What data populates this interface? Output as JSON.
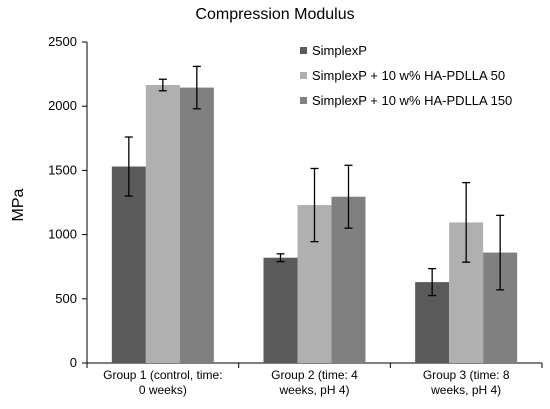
{
  "chart_data": {
    "type": "bar",
    "title": "Compression Modulus",
    "xlabel": "",
    "ylabel": "MPa",
    "ylim": [
      0,
      2500
    ],
    "yticks": [
      0,
      500,
      1000,
      1500,
      2000,
      2500
    ],
    "categories": [
      [
        "Group 1 (control, time:",
        "0 weeks)"
      ],
      [
        "Group 2 (time: 4",
        "weeks, pH 4)"
      ],
      [
        "Group 3 (time: 8",
        "weeks, pH 4)"
      ]
    ],
    "grid": false,
    "legend_position": "top-right",
    "series": [
      {
        "name": "SimplexP",
        "color": "#5a5a5a",
        "values": [
          1530,
          820,
          630
        ],
        "errors": [
          230,
          30,
          105
        ]
      },
      {
        "name": "SimplexP + 10 w% HA-PDLLA 50",
        "color": "#b0b0b0",
        "values": [
          2165,
          1230,
          1095
        ],
        "errors": [
          45,
          285,
          310
        ]
      },
      {
        "name": "SimplexP + 10 w% HA-PDLLA 150",
        "color": "#808080",
        "values": [
          2145,
          1295,
          860
        ],
        "errors": [
          165,
          245,
          290
        ]
      }
    ]
  }
}
